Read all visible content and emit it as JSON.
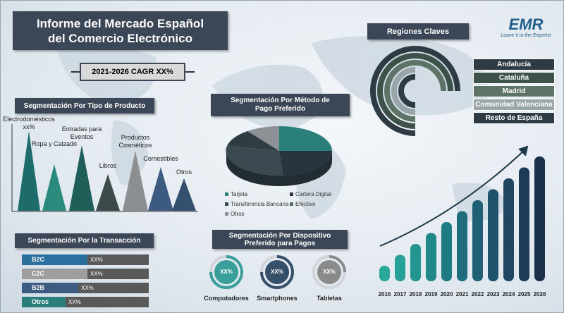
{
  "header": {
    "title": "Informe del Mercado Español del Comercio Electrónico",
    "cagr": "2021-2026 CAGR XX%"
  },
  "logo": {
    "brand": "EMR",
    "tagline": "Leave it to the Experts!"
  },
  "product_segmentation": {
    "title": "Segmentación Por Tipo de Producto",
    "items": [
      "Electrodomésticos xx%",
      "Ropa y Calzado",
      "Entradas para Eventos",
      "Libros",
      "Productos Cosméticos",
      "Comestibles",
      "Otros"
    ]
  },
  "payment": {
    "title": "Segmentación Por Método de Pago Preferido",
    "legend": [
      "Tarjeta",
      "Cartera Digital",
      "Transferencia Bancaria",
      "Efectivo",
      "Otros"
    ]
  },
  "regions": {
    "title": "Regiones Claves",
    "items": [
      "Andalucía",
      "Cataluña",
      "Madrid",
      "Comunidad Valenciana",
      "Resto de España"
    ]
  },
  "transaction": {
    "title": "Segmentación Por la Transacción",
    "rows": [
      {
        "label": "B2C",
        "value": "XX%"
      },
      {
        "label": "C2C",
        "value": "XX%"
      },
      {
        "label": "B2B",
        "value": "XX%"
      },
      {
        "label": "Otros",
        "value": "XX%"
      }
    ]
  },
  "device": {
    "title": "Segmentación Por Dispositivo Preferido para Pagos",
    "items": [
      {
        "label": "Computadores",
        "value": "XX%"
      },
      {
        "label": "Smartphones",
        "value": "XX%"
      },
      {
        "label": "Tabletas",
        "value": "XX%"
      }
    ]
  },
  "years": [
    "2016",
    "2017",
    "2018",
    "2019",
    "2020",
    "2021",
    "2022",
    "2023",
    "2024",
    "2025",
    "2026"
  ]
}
